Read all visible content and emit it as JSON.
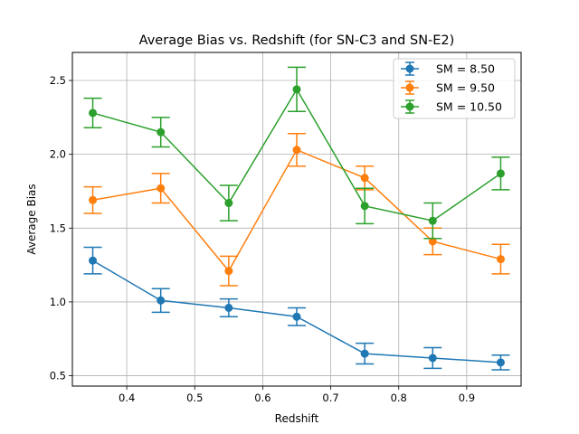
{
  "chart_data": {
    "type": "line",
    "title": "Average Bias vs. Redshift (for SN-C3 and SN-E2)",
    "xlabel": "Redshift",
    "ylabel": "Average Bias",
    "xlim": [
      0.32,
      0.98
    ],
    "ylim": [
      0.43,
      2.69
    ],
    "xticks": [
      0.4,
      0.5,
      0.6,
      0.7,
      0.8,
      0.9
    ],
    "xtick_labels": [
      "0.4",
      "0.5",
      "0.6",
      "0.7",
      "0.8",
      "0.9"
    ],
    "yticks": [
      0.5,
      1.0,
      1.5,
      2.0,
      2.5
    ],
    "ytick_labels": [
      "0.5",
      "1.0",
      "1.5",
      "2.0",
      "2.5"
    ],
    "grid": true,
    "legend_position": "top-right",
    "x": [
      0.35,
      0.45,
      0.55,
      0.65,
      0.75,
      0.85,
      0.95
    ],
    "series": [
      {
        "name": "SM = 8.50",
        "color": "#1f77b4",
        "values": [
          1.28,
          1.01,
          0.96,
          0.9,
          0.65,
          0.62,
          0.59
        ],
        "yerr": [
          0.09,
          0.08,
          0.06,
          0.06,
          0.07,
          0.07,
          0.05
        ]
      },
      {
        "name": "SM = 9.50",
        "color": "#ff7f0e",
        "values": [
          1.69,
          1.77,
          1.21,
          2.03,
          1.84,
          1.41,
          1.29
        ],
        "yerr": [
          0.09,
          0.1,
          0.1,
          0.11,
          0.08,
          0.09,
          0.1
        ]
      },
      {
        "name": "SM = 10.50",
        "color": "#2ca02c",
        "values": [
          2.28,
          2.15,
          1.67,
          2.44,
          1.65,
          1.55,
          1.87
        ],
        "yerr": [
          0.1,
          0.1,
          0.12,
          0.15,
          0.12,
          0.12,
          0.11
        ]
      }
    ]
  }
}
